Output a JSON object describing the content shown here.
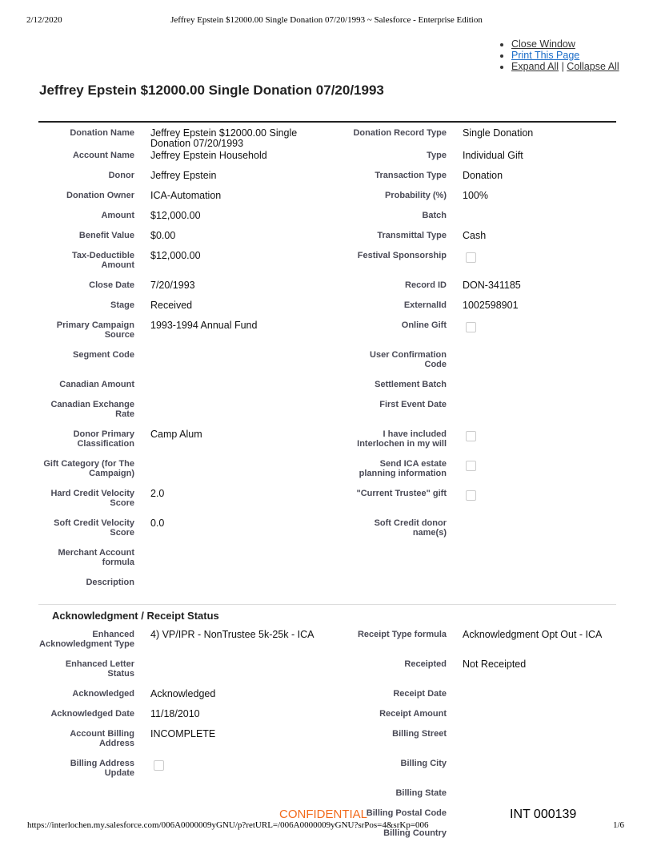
{
  "print_header": {
    "date": "2/12/2020",
    "title": "Jeffrey Epstein $12000.00 Single Donation 07/20/1993 ~ Salesforce - Enterprise Edition"
  },
  "links": {
    "close": "Close Window",
    "print": "Print This Page",
    "expand": "Expand All",
    "sep": "|",
    "collapse": "Collapse All"
  },
  "page_title": "Jeffrey Epstein $12000.00 Single Donation 07/20/1993",
  "rows": [
    {
      "l": "Donation Name",
      "v": "Jeffrey Epstein $12000.00 Single Donation 07/20/1993",
      "rl": "Donation Record Type",
      "rv": "Single Donation"
    },
    {
      "l": "Account Name",
      "v": "Jeffrey Epstein Household",
      "rl": "Type",
      "rv": "Individual Gift"
    },
    {
      "l": "Donor",
      "v": "Jeffrey Epstein",
      "rl": "Transaction Type",
      "rv": "Donation"
    },
    {
      "l": "Donation Owner",
      "v": "ICA-Automation",
      "rl": "Probability (%)",
      "rv": "100%"
    },
    {
      "l": "Amount",
      "v": "$12,000.00",
      "rl": "Batch",
      "rv": ""
    },
    {
      "l": "Benefit Value",
      "v": "$0.00",
      "rl": "Transmittal Type",
      "rv": "Cash"
    },
    {
      "l": "Tax-Deductible Amount",
      "v": "$12,000.00",
      "rl": "Festival Sponsorship",
      "rcb": false
    },
    {
      "l": "Close Date",
      "v": "7/20/1993",
      "rl": "Record ID",
      "rv": "DON-341185"
    },
    {
      "l": "Stage",
      "v": "Received",
      "rl": "ExternalId",
      "rv": "1002598901"
    },
    {
      "l": "Primary Campaign Source",
      "v": "1993-1994 Annual Fund",
      "rl": "Online Gift",
      "rcb": false
    },
    {
      "l": "Segment Code",
      "v": "",
      "rl": "User Confirmation Code",
      "rv": ""
    },
    {
      "l": "Canadian Amount",
      "v": "",
      "rl": "Settlement Batch",
      "rv": ""
    },
    {
      "l": "Canadian Exchange Rate",
      "v": "",
      "rl": "First Event Date",
      "rv": ""
    },
    {
      "l": "Donor Primary Classification",
      "v": "Camp Alum",
      "rl": "I have included Interlochen in my will",
      "rcb": false
    },
    {
      "l": "Gift Category (for The Campaign)",
      "v": "",
      "rl": "Send ICA estate planning information",
      "rcb": false
    },
    {
      "l": "Hard Credit Velocity Score",
      "v": "2.0",
      "rl": "\"Current Trustee\" gift",
      "rcb": false
    },
    {
      "l": "Soft Credit Velocity Score",
      "v": "0.0",
      "rl": "Soft Credit donor name(s)",
      "rv": ""
    },
    {
      "l": "Merchant Account formula",
      "v": "",
      "rl": "",
      "rv": ""
    },
    {
      "l": "Description",
      "v": "",
      "rl": "",
      "rv": ""
    }
  ],
  "section2": {
    "title": "Acknowledgment / Receipt Status",
    "rows": [
      {
        "l": "Enhanced Acknowledgment Type",
        "v": "4) VP/IPR - NonTrustee 5k-25k - ICA",
        "rl": "Receipt Type formula",
        "rv": "Acknowledgment Opt Out - ICA"
      },
      {
        "l": "Enhanced Letter Status",
        "v": "",
        "rl": "Receipted",
        "rv": "Not Receipted"
      },
      {
        "l": "Acknowledged",
        "v": "Acknowledged",
        "rl": "Receipt Date",
        "rv": ""
      },
      {
        "l": "Acknowledged Date",
        "v": "11/18/2010",
        "rl": "Receipt Amount",
        "rv": ""
      },
      {
        "l": "Account Billing Address",
        "v": "INCOMPLETE",
        "rl": "Billing Street",
        "rv": ""
      },
      {
        "l": "Billing Address Update",
        "cb": false,
        "rl": "Billing City",
        "rv": ""
      },
      {
        "l": "",
        "v": "",
        "rl": "Billing State",
        "rv": ""
      },
      {
        "l": "",
        "v": "",
        "rl": "Billing Postal Code",
        "rv": ""
      },
      {
        "l": "",
        "v": "",
        "rl": "Billing Country",
        "rv": ""
      }
    ]
  },
  "footer": {
    "confidential": "CONFIDENTIAL",
    "bates": "INT 000139",
    "url": "https://interlochen.my.salesforce.com/006A0000009yGNU/p?retURL=/006A0000009yGNU?srPos=4&srKp=006",
    "page": "1/6"
  },
  "colors": {
    "link": "#1a6cc8",
    "confidential": "#f26a1b"
  }
}
